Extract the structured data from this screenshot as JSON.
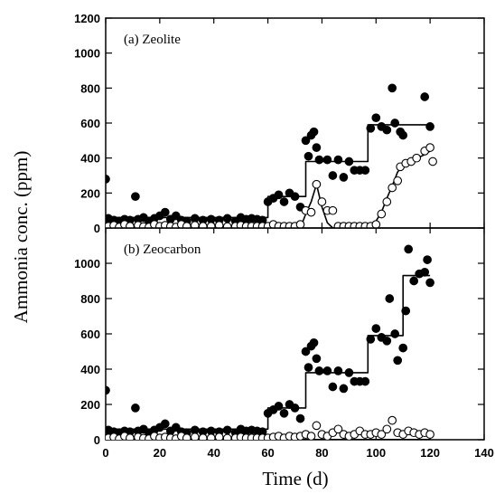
{
  "figure": {
    "xlabel": "Time (d)",
    "ylabel": "Ammonia conc. (ppm)"
  },
  "chart_data": [
    {
      "type": "scatter",
      "title": "(a) Zeolite",
      "xlabel": "Time (d)",
      "ylabel": "Ammonia conc. (ppm)",
      "xlim": [
        0,
        140
      ],
      "ylim": [
        0,
        1200
      ],
      "xticks": [
        0,
        20,
        40,
        60,
        80,
        100,
        120,
        140
      ],
      "yticks": [
        0,
        200,
        400,
        600,
        800,
        1000,
        1200
      ],
      "series": [
        {
          "marker": "filled-circle",
          "points": [
            [
              0,
              280
            ],
            [
              1,
              55
            ],
            [
              3,
              45
            ],
            [
              5,
              40
            ],
            [
              7,
              50
            ],
            [
              9,
              45
            ],
            [
              11,
              180
            ],
            [
              12,
              50
            ],
            [
              14,
              60
            ],
            [
              16,
              40
            ],
            [
              18,
              55
            ],
            [
              20,
              70
            ],
            [
              22,
              90
            ],
            [
              24,
              50
            ],
            [
              26,
              70
            ],
            [
              28,
              45
            ],
            [
              30,
              40
            ],
            [
              33,
              55
            ],
            [
              36,
              45
            ],
            [
              39,
              50
            ],
            [
              42,
              45
            ],
            [
              45,
              55
            ],
            [
              48,
              40
            ],
            [
              50,
              60
            ],
            [
              52,
              50
            ],
            [
              54,
              55
            ],
            [
              56,
              50
            ],
            [
              58,
              45
            ],
            [
              60,
              150
            ],
            [
              62,
              170
            ],
            [
              64,
              190
            ],
            [
              66,
              150
            ],
            [
              68,
              200
            ],
            [
              70,
              180
            ],
            [
              72,
              120
            ],
            [
              74,
              500
            ],
            [
              75,
              410
            ],
            [
              76,
              530
            ],
            [
              77,
              550
            ],
            [
              78,
              460
            ],
            [
              79,
              390
            ],
            [
              82,
              390
            ],
            [
              84,
              300
            ],
            [
              86,
              390
            ],
            [
              88,
              290
            ],
            [
              90,
              380
            ],
            [
              92,
              330
            ],
            [
              94,
              330
            ],
            [
              96,
              330
            ],
            [
              98,
              570
            ],
            [
              100,
              630
            ],
            [
              102,
              580
            ],
            [
              104,
              560
            ],
            [
              106,
              800
            ],
            [
              107,
              600
            ],
            [
              109,
              550
            ],
            [
              110,
              530
            ],
            [
              118,
              750
            ],
            [
              120,
              580
            ]
          ]
        },
        {
          "marker": "open-circle",
          "points": [
            [
              1,
              10
            ],
            [
              3,
              15
            ],
            [
              5,
              5
            ],
            [
              7,
              20
            ],
            [
              9,
              10
            ],
            [
              12,
              15
            ],
            [
              14,
              8
            ],
            [
              16,
              5
            ],
            [
              18,
              20
            ],
            [
              20,
              10
            ],
            [
              22,
              15
            ],
            [
              24,
              10
            ],
            [
              26,
              5
            ],
            [
              28,
              20
            ],
            [
              30,
              10
            ],
            [
              33,
              15
            ],
            [
              36,
              10
            ],
            [
              39,
              10
            ],
            [
              42,
              15
            ],
            [
              45,
              8
            ],
            [
              48,
              10
            ],
            [
              50,
              15
            ],
            [
              52,
              10
            ],
            [
              54,
              10
            ],
            [
              56,
              10
            ],
            [
              58,
              10
            ],
            [
              60,
              10
            ],
            [
              62,
              20
            ],
            [
              64,
              10
            ],
            [
              66,
              10
            ],
            [
              68,
              10
            ],
            [
              70,
              10
            ],
            [
              72,
              20
            ],
            [
              74,
              100
            ],
            [
              76,
              90
            ],
            [
              78,
              250
            ],
            [
              80,
              150
            ],
            [
              82,
              100
            ],
            [
              84,
              100
            ],
            [
              86,
              10
            ],
            [
              88,
              10
            ],
            [
              90,
              10
            ],
            [
              92,
              10
            ],
            [
              94,
              10
            ],
            [
              96,
              10
            ],
            [
              98,
              10
            ],
            [
              100,
              20
            ],
            [
              102,
              80
            ],
            [
              104,
              150
            ],
            [
              106,
              230
            ],
            [
              108,
              270
            ],
            [
              109,
              350
            ],
            [
              111,
              370
            ],
            [
              113,
              380
            ],
            [
              115,
              400
            ],
            [
              118,
              440
            ],
            [
              120,
              460
            ],
            [
              121,
              380
            ]
          ]
        },
        {
          "line": "step",
          "points": [
            [
              0,
              60
            ],
            [
              60,
              60
            ],
            [
              60,
              180
            ],
            [
              74,
              180
            ],
            [
              74,
              380
            ],
            [
              97,
              380
            ],
            [
              97,
              590
            ],
            [
              120,
              590
            ]
          ]
        },
        {
          "line": "smooth",
          "points": [
            [
              0,
              0
            ],
            [
              72,
              0
            ],
            [
              74,
              80
            ],
            [
              76,
              150
            ],
            [
              78,
              250
            ],
            [
              80,
              120
            ],
            [
              82,
              30
            ],
            [
              84,
              0
            ],
            [
              94,
              0
            ],
            [
              97,
              10
            ],
            [
              100,
              40
            ],
            [
              102,
              90
            ],
            [
              104,
              170
            ],
            [
              106,
              240
            ],
            [
              108,
              320
            ],
            [
              110,
              360
            ],
            [
              114,
              390
            ],
            [
              118,
              420
            ],
            [
              120,
              440
            ]
          ]
        }
      ]
    },
    {
      "type": "scatter",
      "title": "(b) Zeocarbon",
      "xlabel": "Time (d)",
      "ylabel": "Ammonia conc. (ppm)",
      "xlim": [
        0,
        140
      ],
      "ylim": [
        0,
        1200
      ],
      "xticks": [
        0,
        20,
        40,
        60,
        80,
        100,
        120,
        140
      ],
      "yticks": [
        0,
        200,
        400,
        600,
        800,
        1000
      ],
      "series": [
        {
          "marker": "filled-circle",
          "points": [
            [
              0,
              280
            ],
            [
              1,
              55
            ],
            [
              3,
              45
            ],
            [
              5,
              40
            ],
            [
              7,
              50
            ],
            [
              9,
              45
            ],
            [
              11,
              180
            ],
            [
              12,
              50
            ],
            [
              14,
              60
            ],
            [
              16,
              40
            ],
            [
              18,
              55
            ],
            [
              20,
              70
            ],
            [
              22,
              90
            ],
            [
              24,
              50
            ],
            [
              26,
              70
            ],
            [
              28,
              45
            ],
            [
              30,
              40
            ],
            [
              33,
              55
            ],
            [
              36,
              45
            ],
            [
              39,
              50
            ],
            [
              42,
              45
            ],
            [
              45,
              55
            ],
            [
              48,
              40
            ],
            [
              50,
              60
            ],
            [
              52,
              50
            ],
            [
              54,
              55
            ],
            [
              56,
              50
            ],
            [
              58,
              45
            ],
            [
              60,
              150
            ],
            [
              62,
              170
            ],
            [
              64,
              190
            ],
            [
              66,
              150
            ],
            [
              68,
              200
            ],
            [
              70,
              180
            ],
            [
              72,
              120
            ],
            [
              74,
              500
            ],
            [
              75,
              410
            ],
            [
              76,
              530
            ],
            [
              77,
              550
            ],
            [
              78,
              460
            ],
            [
              79,
              390
            ],
            [
              82,
              390
            ],
            [
              84,
              300
            ],
            [
              86,
              390
            ],
            [
              88,
              290
            ],
            [
              90,
              380
            ],
            [
              92,
              330
            ],
            [
              94,
              330
            ],
            [
              96,
              330
            ],
            [
              98,
              570
            ],
            [
              100,
              630
            ],
            [
              102,
              580
            ],
            [
              104,
              560
            ],
            [
              105,
              800
            ],
            [
              107,
              600
            ],
            [
              108,
              450
            ],
            [
              110,
              520
            ],
            [
              111,
              730
            ],
            [
              112,
              1080
            ],
            [
              114,
              900
            ],
            [
              116,
              940
            ],
            [
              118,
              950
            ],
            [
              119,
              1020
            ],
            [
              120,
              890
            ]
          ]
        },
        {
          "marker": "open-circle",
          "points": [
            [
              1,
              10
            ],
            [
              3,
              15
            ],
            [
              5,
              5
            ],
            [
              7,
              20
            ],
            [
              9,
              10
            ],
            [
              12,
              15
            ],
            [
              14,
              8
            ],
            [
              16,
              5
            ],
            [
              18,
              20
            ],
            [
              20,
              10
            ],
            [
              22,
              15
            ],
            [
              24,
              10
            ],
            [
              26,
              5
            ],
            [
              28,
              20
            ],
            [
              30,
              10
            ],
            [
              33,
              15
            ],
            [
              36,
              10
            ],
            [
              39,
              10
            ],
            [
              42,
              15
            ],
            [
              45,
              8
            ],
            [
              48,
              10
            ],
            [
              50,
              15
            ],
            [
              52,
              10
            ],
            [
              54,
              10
            ],
            [
              56,
              10
            ],
            [
              58,
              10
            ],
            [
              60,
              10
            ],
            [
              62,
              15
            ],
            [
              64,
              20
            ],
            [
              66,
              10
            ],
            [
              68,
              20
            ],
            [
              70,
              15
            ],
            [
              72,
              20
            ],
            [
              74,
              30
            ],
            [
              76,
              20
            ],
            [
              78,
              80
            ],
            [
              80,
              30
            ],
            [
              82,
              20
            ],
            [
              84,
              40
            ],
            [
              86,
              60
            ],
            [
              88,
              30
            ],
            [
              90,
              20
            ],
            [
              92,
              30
            ],
            [
              94,
              50
            ],
            [
              96,
              30
            ],
            [
              98,
              30
            ],
            [
              100,
              40
            ],
            [
              102,
              30
            ],
            [
              104,
              60
            ],
            [
              106,
              110
            ],
            [
              108,
              40
            ],
            [
              110,
              30
            ],
            [
              112,
              50
            ],
            [
              114,
              40
            ],
            [
              116,
              30
            ],
            [
              118,
              40
            ],
            [
              120,
              30
            ]
          ]
        },
        {
          "line": "step",
          "points": [
            [
              0,
              60
            ],
            [
              60,
              60
            ],
            [
              60,
              180
            ],
            [
              74,
              180
            ],
            [
              74,
              380
            ],
            [
              97,
              380
            ],
            [
              97,
              590
            ],
            [
              110,
              590
            ],
            [
              110,
              930
            ],
            [
              120,
              930
            ]
          ]
        },
        {
          "line": "flat",
          "points": [
            [
              0,
              0
            ],
            [
              120,
              0
            ]
          ]
        }
      ]
    }
  ]
}
